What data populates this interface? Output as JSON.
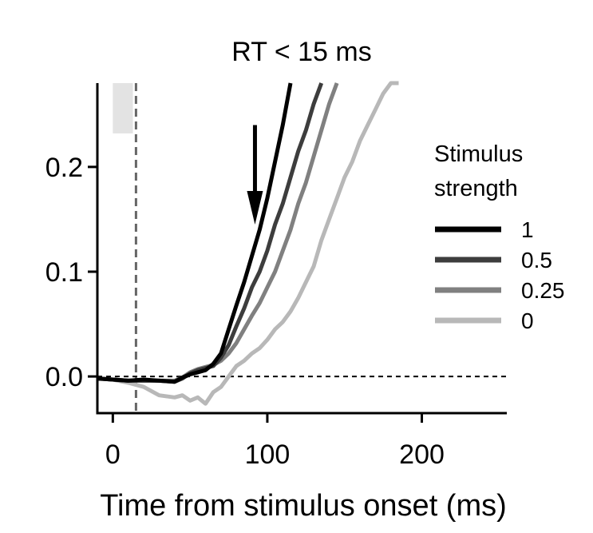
{
  "chart_data": {
    "type": "line",
    "title": "RT < 15 ms",
    "xlabel": "Time from stimulus onset (ms)",
    "ylabel": "",
    "xlim": [
      -10,
      255
    ],
    "ylim": [
      -0.035,
      0.28
    ],
    "xticks": [
      0,
      100,
      200
    ],
    "xtick_labels": [
      "0",
      "100",
      "200"
    ],
    "yticks": [
      0.0,
      0.1,
      0.2
    ],
    "ytick_labels": [
      "0.0",
      "0.1",
      "0.2"
    ],
    "grid": false,
    "reference_line_y": 0,
    "rt_marker_x": 15,
    "rt_window": {
      "x_start": 0,
      "x_end": 13,
      "y_start": 0.232,
      "y_end": 0.28
    },
    "arrow": {
      "x": 92,
      "y_start": 0.24,
      "y_end": 0.145
    },
    "legend": {
      "title": "Stimulus strength",
      "title_lines": [
        "Stimulus",
        "strength"
      ],
      "placement": "center-right"
    },
    "series": [
      {
        "name": "1",
        "color": "#000000",
        "x": [
          -10,
          0,
          10,
          20,
          30,
          40,
          45,
          50,
          55,
          60,
          65,
          70,
          75,
          80,
          85,
          90,
          95,
          100,
          105,
          110,
          115
        ],
        "y": [
          -0.002,
          -0.003,
          -0.004,
          -0.003,
          -0.004,
          -0.005,
          -0.001,
          0.002,
          0.004,
          0.006,
          0.012,
          0.022,
          0.045,
          0.068,
          0.09,
          0.115,
          0.14,
          0.17,
          0.205,
          0.24,
          0.28
        ]
      },
      {
        "name": "0.5",
        "color": "#3d3d3d",
        "x": [
          -10,
          0,
          10,
          20,
          30,
          40,
          45,
          50,
          55,
          60,
          65,
          70,
          75,
          80,
          85,
          90,
          95,
          100,
          105,
          110,
          115,
          120,
          125,
          130,
          135
        ],
        "y": [
          -0.002,
          -0.003,
          -0.004,
          -0.004,
          -0.004,
          -0.005,
          -0.002,
          0.003,
          0.006,
          0.008,
          0.01,
          0.018,
          0.03,
          0.048,
          0.065,
          0.085,
          0.1,
          0.12,
          0.145,
          0.165,
          0.19,
          0.215,
          0.235,
          0.26,
          0.28
        ]
      },
      {
        "name": "0.25",
        "color": "#808080",
        "x": [
          -10,
          0,
          10,
          20,
          30,
          40,
          45,
          50,
          55,
          60,
          65,
          70,
          75,
          80,
          85,
          90,
          95,
          100,
          105,
          110,
          115,
          120,
          125,
          130,
          135,
          140,
          145
        ],
        "y": [
          -0.002,
          -0.003,
          -0.004,
          -0.004,
          -0.004,
          -0.004,
          -0.001,
          0.004,
          0.007,
          0.009,
          0.011,
          0.015,
          0.022,
          0.032,
          0.045,
          0.058,
          0.07,
          0.085,
          0.1,
          0.12,
          0.14,
          0.165,
          0.185,
          0.21,
          0.235,
          0.26,
          0.28
        ]
      },
      {
        "name": "0",
        "color": "#b8b8b8",
        "x": [
          -10,
          0,
          10,
          20,
          30,
          40,
          45,
          50,
          55,
          60,
          65,
          70,
          75,
          80,
          85,
          90,
          95,
          100,
          105,
          110,
          115,
          120,
          125,
          130,
          135,
          140,
          145,
          150,
          155,
          160,
          165,
          170,
          175,
          180,
          185
        ],
        "y": [
          -0.002,
          -0.003,
          -0.006,
          -0.01,
          -0.018,
          -0.02,
          -0.018,
          -0.023,
          -0.02,
          -0.026,
          -0.015,
          -0.01,
          0.0,
          0.01,
          0.015,
          0.022,
          0.027,
          0.035,
          0.045,
          0.052,
          0.062,
          0.075,
          0.09,
          0.105,
          0.13,
          0.15,
          0.17,
          0.19,
          0.205,
          0.225,
          0.24,
          0.255,
          0.27,
          0.28,
          0.28
        ]
      }
    ]
  }
}
